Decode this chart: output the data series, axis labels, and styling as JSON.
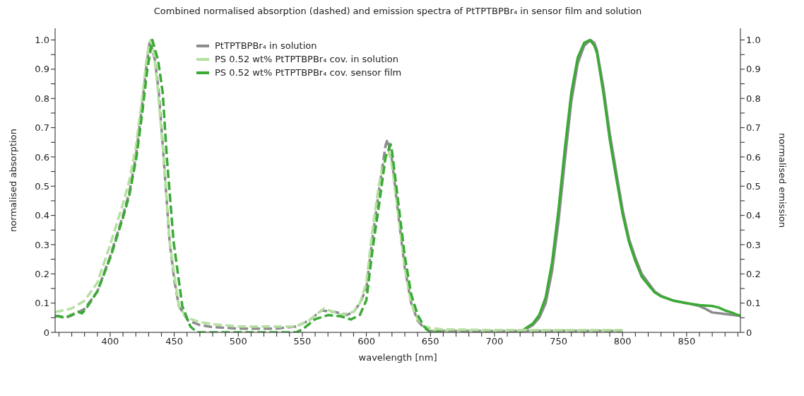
{
  "chart_data": {
    "type": "line",
    "title": "Combined normalised absorption (dashed) and emission spectra of PtTPTBPBr₄ in sensor film and solution",
    "xlabel": "wavelength [nm]",
    "ylabel": "normalised absorption",
    "y2label": "normalised emission",
    "legend": "top left",
    "xlim": [
      357,
      892
    ],
    "xticks": [
      {
        "value": 360,
        "label": null
      },
      {
        "value": 370,
        "label": null
      },
      {
        "value": 380,
        "label": null
      },
      {
        "value": 390,
        "label": null
      },
      400,
      {
        "value": 410,
        "label": null
      },
      {
        "value": 420,
        "label": null
      },
      {
        "value": 430,
        "label": null
      },
      {
        "value": 440,
        "label": null
      },
      450,
      {
        "value": 460,
        "label": null
      },
      {
        "value": 470,
        "label": null
      },
      {
        "value": 480,
        "label": null
      },
      {
        "value": 490,
        "label": null
      },
      500,
      {
        "value": 510,
        "label": null
      },
      {
        "value": 520,
        "label": null
      },
      {
        "value": 530,
        "label": null
      },
      {
        "value": 540,
        "label": null
      },
      550,
      {
        "value": 560,
        "label": null
      },
      {
        "value": 570,
        "label": null
      },
      {
        "value": 580,
        "label": null
      },
      {
        "value": 590,
        "label": null
      },
      600,
      {
        "value": 610,
        "label": null
      },
      {
        "value": 620,
        "label": null
      },
      {
        "value": 630,
        "label": null
      },
      {
        "value": 640,
        "label": null
      },
      650,
      {
        "value": 660,
        "label": null
      },
      {
        "value": 670,
        "label": null
      },
      {
        "value": 680,
        "label": null
      },
      {
        "value": 690,
        "label": null
      },
      700,
      {
        "value": 710,
        "label": null
      },
      {
        "value": 720,
        "label": null
      },
      {
        "value": 730,
        "label": null
      },
      {
        "value": 740,
        "label": null
      },
      750,
      {
        "value": 760,
        "label": null
      },
      {
        "value": 770,
        "label": null
      },
      {
        "value": 780,
        "label": null
      },
      {
        "value": 790,
        "label": null
      },
      800,
      {
        "value": 810,
        "label": null
      },
      {
        "value": 820,
        "label": null
      },
      {
        "value": 830,
        "label": null
      },
      {
        "value": 840,
        "label": null
      },
      850,
      {
        "value": 860,
        "label": null
      },
      {
        "value": 870,
        "label": null
      },
      {
        "value": 880,
        "label": null
      },
      {
        "value": 890,
        "label": null
      }
    ],
    "ylim": [
      0,
      1.04
    ],
    "yticks": [
      0,
      {
        "value": 0.05,
        "label": null
      },
      0.1,
      {
        "value": 0.15,
        "label": null
      },
      0.2,
      {
        "value": 0.25,
        "label": null
      },
      0.3,
      {
        "value": 0.35,
        "label": null
      },
      0.4,
      {
        "value": 0.45,
        "label": null
      },
      0.5,
      {
        "value": 0.55,
        "label": null
      },
      0.6,
      {
        "value": 0.65,
        "label": null
      },
      0.7,
      {
        "value": 0.75,
        "label": null
      },
      0.8,
      {
        "value": 0.85,
        "label": null
      },
      0.9,
      {
        "value": 0.95,
        "label": null
      },
      {
        "value": 1,
        "label": "1.0"
      }
    ],
    "y2lim": [
      0,
      1.04
    ],
    "y2ticks": [
      0,
      {
        "value": 0.05,
        "label": null
      },
      0.1,
      {
        "value": 0.15,
        "label": null
      },
      0.2,
      {
        "value": 0.25,
        "label": null
      },
      0.3,
      {
        "value": 0.35,
        "label": null
      },
      0.4,
      {
        "value": 0.45,
        "label": null
      },
      0.5,
      {
        "value": 0.55,
        "label": null
      },
      0.6,
      {
        "value": 0.65,
        "label": null
      },
      0.7,
      {
        "value": 0.75,
        "label": null
      },
      0.8,
      {
        "value": 0.85,
        "label": null
      },
      0.9,
      {
        "value": 0.95,
        "label": null
      },
      {
        "value": 1,
        "label": "1.0"
      }
    ],
    "series": [
      {
        "name": "PtTPTBPBr₄ in solution",
        "color": "#8c8c8c",
        "line_style": "solid",
        "x": [
          718,
          725,
          730,
          735,
          740,
          745,
          750,
          755,
          760,
          765,
          770,
          775,
          778,
          780,
          785,
          790,
          795,
          800,
          805,
          810,
          815,
          820,
          825,
          830,
          840,
          850,
          860,
          865,
          870,
          880,
          892
        ],
        "values": [
          0,
          0.012,
          0.025,
          0.05,
          0.1,
          0.21,
          0.38,
          0.59,
          0.79,
          0.92,
          0.98,
          1.0,
          0.99,
          0.965,
          0.84,
          0.68,
          0.55,
          0.42,
          0.32,
          0.255,
          0.2,
          0.17,
          0.14,
          0.125,
          0.108,
          0.1,
          0.09,
          0.08,
          0.068,
          0.063,
          0.056
        ]
      },
      {
        "name": "PS 0.52 wt% PtTPTBPBr₄ cov. in solution",
        "color": "#b5e0a0",
        "line_style": "solid",
        "x": [
          650,
          665,
          680,
          695,
          710,
          725,
          740,
          755,
          770,
          785,
          800
        ],
        "values": [
          0.006,
          0.004,
          0.006,
          0.004,
          0.005,
          0.006,
          0.004,
          0.006,
          0.005,
          0.006,
          0.004
        ]
      },
      {
        "name": "PS 0.52 wt% PtTPTBPBr₄ cov. sensor film",
        "color": "#3aaa35",
        "line_style": "solid",
        "x": [
          720,
          725,
          730,
          735,
          740,
          745,
          750,
          755,
          760,
          765,
          770,
          774.5,
          778,
          780,
          785,
          790,
          795,
          800,
          805,
          810,
          815,
          820,
          825,
          830,
          840,
          850,
          860,
          870,
          875,
          880,
          885,
          892
        ],
        "values": [
          0,
          0.016,
          0.03,
          0.06,
          0.12,
          0.24,
          0.42,
          0.63,
          0.82,
          0.94,
          0.99,
          1.0,
          0.98,
          0.956,
          0.82,
          0.66,
          0.53,
          0.405,
          0.31,
          0.244,
          0.19,
          0.163,
          0.137,
          0.123,
          0.108,
          0.1,
          0.093,
          0.09,
          0.085,
          0.075,
          0.068,
          0.056
        ]
      },
      {
        "color": "#8c8c8c",
        "line_style": "dashed",
        "x": [
          357,
          360,
          365,
          370,
          380,
          390,
          400,
          405,
          410,
          415,
          420,
          425,
          428,
          431,
          435,
          438,
          441.7,
          446.4,
          450,
          453.6,
          460.8,
          470,
          480,
          500,
          530,
          545,
          555,
          565,
          575,
          585,
          590,
          595,
          600,
          605,
          610,
          615,
          616.5,
          620,
          625,
          630,
          635,
          640,
          645,
          650,
          660,
          700,
          750,
          800
        ],
        "values": [
          0.057,
          0.055,
          0.05,
          0.058,
          0.08,
          0.14,
          0.26,
          0.33,
          0.4,
          0.48,
          0.6,
          0.78,
          0.9,
          1.0,
          0.93,
          0.82,
          0.6,
          0.31,
          0.18,
          0.09,
          0.04,
          0.025,
          0.018,
          0.013,
          0.013,
          0.02,
          0.04,
          0.075,
          0.07,
          0.06,
          0.07,
          0.1,
          0.15,
          0.33,
          0.49,
          0.64,
          0.66,
          0.59,
          0.4,
          0.22,
          0.1,
          0.04,
          0.015,
          0.003,
          0.005,
          0.004,
          0.005,
          0.005
        ]
      },
      {
        "color": "#b5e0a0",
        "line_style": "dashed",
        "x": [
          357,
          360,
          370,
          380,
          390,
          400,
          410,
          415,
          420,
          425,
          428,
          430,
          431.6,
          434,
          437,
          441.7,
          446.4,
          450,
          453.6,
          460,
          470,
          480,
          500,
          545,
          555,
          567,
          580,
          590,
          595,
          600,
          605,
          610,
          615,
          617.5,
          620,
          625,
          630,
          635,
          640,
          645,
          650,
          660,
          700,
          750,
          800
        ],
        "values": [
          0.07,
          0.072,
          0.082,
          0.108,
          0.17,
          0.3,
          0.44,
          0.52,
          0.633,
          0.8,
          0.92,
          0.98,
          1.0,
          0.96,
          0.84,
          0.6,
          0.31,
          0.2,
          0.09,
          0.05,
          0.035,
          0.028,
          0.02,
          0.02,
          0.04,
          0.082,
          0.06,
          0.07,
          0.1,
          0.17,
          0.36,
          0.51,
          0.6,
          0.62,
          0.57,
          0.4,
          0.22,
          0.1,
          0.045,
          0.02,
          0.015,
          0.01,
          0.008,
          0.008,
          0.008
        ]
      },
      {
        "color": "#3aaa35",
        "line_style": "dashed",
        "x": [
          357,
          360,
          365,
          370,
          375,
          378,
          381,
          390,
          400.5,
          410.5,
          415,
          420.5,
          425,
          429,
          432.9,
          437.4,
          441,
          444.2,
          449.5,
          456.3,
          462.6,
          468,
          545,
          550,
          560,
          570,
          580,
          588,
          595,
          600,
          605,
          610,
          615,
          619,
          620,
          625,
          630,
          635,
          640,
          645,
          650,
          660
        ],
        "values": [
          0.055,
          0.055,
          0.05,
          0.06,
          0.07,
          0.065,
          0.08,
          0.14,
          0.26,
          0.4,
          0.47,
          0.6,
          0.75,
          0.9,
          1.0,
          0.93,
          0.82,
          0.6,
          0.31,
          0.09,
          0.02,
          0,
          0,
          0.01,
          0.045,
          0.059,
          0.055,
          0.044,
          0.06,
          0.11,
          0.29,
          0.44,
          0.6,
          0.643,
          0.62,
          0.44,
          0.26,
          0.13,
          0.06,
          0.02,
          0,
          0
        ]
      }
    ]
  }
}
